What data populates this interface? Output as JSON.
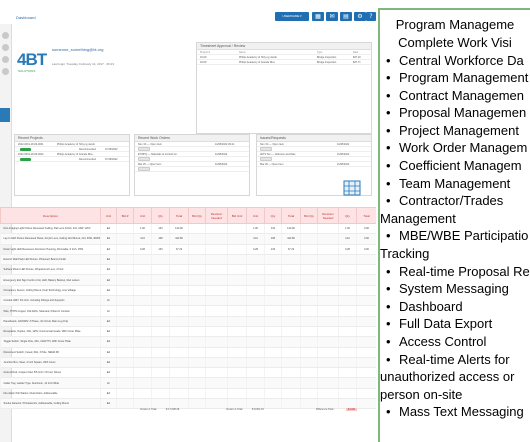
{
  "app": {
    "breadcrumb": "Dashboard",
    "topbar": {
      "user_label": "USERNAME ▾",
      "buttons": [
        "calendar-icon",
        "envelope-icon",
        "printer-icon",
        "gear-icon",
        "help-icon"
      ]
    },
    "logo": {
      "text": "4BT",
      "tagline": "SOLUTIONS"
    },
    "user": {
      "name": "someone_something@bt.org",
      "meta": "Last login: Tuesday, February 14, 2017 · 06:23"
    },
    "panels": {
      "recent": {
        "title": "Recent Proposals",
        "rows": [
          {
            "id": "2022-0001-18-09-0001",
            "text": "Philips Academy of Holy-ng Jacob",
            "status": "Approved",
            "date": "07/14/2022"
          },
          {
            "id": "2022-0002-18-09-0002",
            "text": "Philips Academy of Grande Rice",
            "status": "Approved",
            "date": "07/14/2022"
          }
        ]
      },
      "top_right": {
        "title": "Timesheet Approval / Review",
        "cols": [
          "Project #",
          "Name",
          "Type",
          "Date"
        ],
        "rows": [
          {
            "id": "19-09",
            "text": "Philips Academy of Holy-ng Jacob",
            "type": "Bridge Inspection",
            "date": "$37.20"
          },
          {
            "id": "18-09",
            "text": "Philips Academy of Grande Rice",
            "type": "Bridge Inspection",
            "date": "$37.71"
          }
        ]
      },
      "projects": {
        "title": "Recent Projects",
        "rows": [
          {
            "id": "2022-0001-18-09-0001",
            "text": "Philips Academy of Holy-ng Jacob",
            "sub": "Recommended",
            "date": "07/18/2022"
          },
          {
            "id": "2022-0002-18-09-0002",
            "text": "Philips Academy of Grande Rice",
            "sub": "Recommended",
            "date": "07/18/2022"
          }
        ]
      },
      "work_orders": {
        "title": "Recent Work Orders",
        "rows": [
          {
            "id": "Nov. 04 — Open Item",
            "date": "11/08/2022 09:41"
          },
          {
            "id": "ETWHQ — Materials to Control Inc.",
            "date": "11/08/2022"
          },
          {
            "id": "Mar 26 — Open Item",
            "date": "11/08/2022"
          }
        ]
      },
      "issues": {
        "title": "Issues/Requests",
        "rows": [
          {
            "id": "Nov. 04 — Open Item",
            "date": "11/08/2022"
          },
          {
            "id": "JETS Tec — Jefferson and Dale",
            "date": "11/08/2022"
          },
          {
            "id": "Mar 26 — Open Item",
            "date": "11/08/2022"
          }
        ]
      }
    },
    "table": {
      "headers": [
        "Description",
        "Unit",
        "Bid #",
        "Unit",
        "Qty",
        "Total",
        "Bid Qty",
        "Revision Needed",
        "Bid Unit",
        "Unit",
        "Qty",
        "Total",
        "Bid Qty",
        "Revision Needed",
        "Qty",
        "Total"
      ],
      "rows": [
        [
          "Non-Imaging Light Fixture Recessed Ceiling, Flat Lens Finish, 2x2, 24W, 120V",
          "EA",
          "",
          "1.00",
          "134",
          "134.00",
          "",
          "",
          "",
          "1.00",
          "134",
          "134.00",
          "",
          "",
          "1.00",
          "0.00"
        ],
        [
          "Lay-In LED Fixture Recessed Panel, Acrylic Lens, Ceiling Grid Mount, 2x4, 40W, 4000K",
          "EA",
          "",
          "4.10",
          "108",
          "442.80",
          "",
          "",
          "",
          "4.10",
          "108",
          "442.80",
          "",
          "",
          "4.10",
          "0.00"
        ],
        [
          "Down Light LED Recessed, Aluminum Housing, Dimmable, 6 Inch, 15W",
          "EA",
          "",
          "0.28",
          "133",
          "37.24",
          "",
          "",
          "",
          "0.28",
          "133",
          "37.24",
          "",
          "",
          "0.28",
          "0.00"
        ],
        [
          "Exterior Wall Pack LED Fixture, Photocell, Bronze Finish",
          "EA",
          "",
          "",
          "",
          "",
          "",
          "",
          "",
          "",
          "",
          "",
          "",
          "",
          "",
          ""
        ],
        [
          "Surface Mount LED Fixture, Wraparound Lens, 4 Foot",
          "EA",
          "",
          "",
          "",
          "",
          "",
          "",
          "",
          "",
          "",
          "",
          "",
          "",
          "",
          ""
        ],
        [
          "Emergency Exit Sign Combo Unit, LED, Battery Backup, Red Letters",
          "EA",
          "",
          "",
          "",
          "",
          "",
          "",
          "",
          "",
          "",
          "",
          "",
          "",
          "",
          ""
        ],
        [
          "Occupancy Sensor, Ceiling Mount, Dual Technology, Line Voltage",
          "EA",
          "",
          "",
          "",
          "",
          "",
          "",
          "",
          "",
          "",
          "",
          "",
          "",
          "",
          ""
        ],
        [
          "Conduit, EMT, 3/4 Inch, Including Fittings and Supports",
          "LF",
          "",
          "",
          "",
          "",
          "",
          "",
          "",
          "",
          "",
          "",
          "",
          "",
          "",
          ""
        ],
        [
          "Wire, THHN Copper, #12 AWG, Stranded, Pulled in Conduit",
          "LF",
          "",
          "",
          "",
          "",
          "",
          "",
          "",
          "",
          "",
          "",
          "",
          "",
          "",
          ""
        ],
        [
          "Panelboard, 120/208V, 3 Phase, 42 Circuit, Main Lug Only",
          "EA",
          "",
          "",
          "",
          "",
          "",
          "",
          "",
          "",
          "",
          "",
          "",
          "",
          "",
          ""
        ],
        [
          "Receptacle, Duplex, 20A, 125V, Commercial Grade, With Cover Plate",
          "EA",
          "",
          "",
          "",
          "",
          "",
          "",
          "",
          "",
          "",
          "",
          "",
          "",
          "",
          ""
        ],
        [
          "Toggle Switch, Single Pole, 20A, 120/277V, With Cover Plate",
          "EA",
          "",
          "",
          "",
          "",
          "",
          "",
          "",
          "",
          "",
          "",
          "",
          "",
          "",
          ""
        ],
        [
          "Disconnect Switch, Fused, 60A, 3 Pole, NEMA 3R",
          "EA",
          "",
          "",
          "",
          "",
          "",
          "",
          "",
          "",
          "",
          "",
          "",
          "",
          "",
          ""
        ],
        [
          "Junction Box, Steel, 4 Inch Square, With Cover",
          "EA",
          "",
          "",
          "",
          "",
          "",
          "",
          "",
          "",
          "",
          "",
          "",
          "",
          "",
          ""
        ],
        [
          "Ground Rod, Copper Clad, 5/8 Inch x 8 Foot, Driven",
          "EA",
          "",
          "",
          "",
          "",
          "",
          "",
          "",
          "",
          "",
          "",
          "",
          "",
          "",
          ""
        ],
        [
          "Cable Tray, Ladder Type, Aluminum, 12 Inch Wide",
          "LF",
          "",
          "",
          "",
          "",
          "",
          "",
          "",
          "",
          "",
          "",
          "",
          "",
          "",
          ""
        ],
        [
          "Fire Alarm Pull Station, Dual Action, Addressable",
          "EA",
          "",
          "",
          "",
          "",
          "",
          "",
          "",
          "",
          "",
          "",
          "",
          "",
          "",
          ""
        ],
        [
          "Smoke Detector, Photoelectric, Addressable, Ceiling Mount",
          "EA",
          "",
          "",
          "",
          "",
          "",
          "",
          "",
          "",
          "",
          "",
          "",
          "",
          "",
          ""
        ]
      ]
    },
    "totals": {
      "left_label": "Version 1 Total",
      "left_value": "$ 17,098.46",
      "mid_label": "Version 1 Total",
      "mid_value": "$ 8,301.15",
      "right_label": "Difference Total",
      "right_value": "$ 0.00"
    }
  },
  "features": {
    "heading_line1": "Program Manageme",
    "heading_line2": "Complete Work Visi",
    "bullet": "•",
    "items": [
      "Central Workforce Da",
      "Program Management",
      "Contract Managemen",
      "Proposal Managemen",
      "Project Management",
      "Work Order Managem",
      "Coefficient Managem",
      "Team Management",
      {
        "line1": "Contractor/Trades",
        "line2": "Management"
      },
      {
        "line1": "MBE/WBE Participatio",
        "line2": "Tracking"
      },
      "Real-time Proposal Re",
      "System Messaging",
      "Dashboard",
      "Full Data Export",
      "Access Control",
      {
        "line1": "Real-time Alerts for",
        "line2": "unauthorized access or",
        "line3": "person on-site"
      },
      "Mass Text Messaging"
    ]
  }
}
